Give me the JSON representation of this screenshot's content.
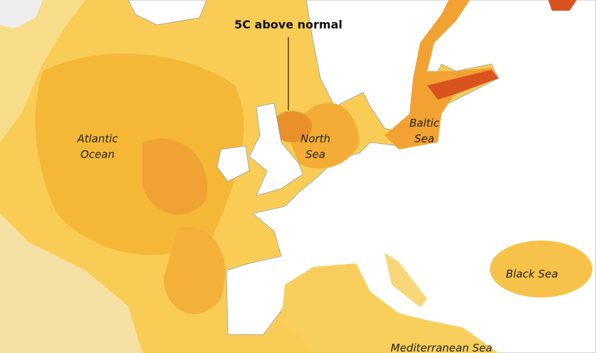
{
  "annotation": {
    "text": "5C above normal"
  },
  "labels": [
    {
      "lines": [
        "Atlantic",
        "Ocean"
      ]
    },
    {
      "lines": [
        "North",
        "Sea"
      ]
    },
    {
      "lines": [
        "Baltic",
        "Sea"
      ]
    },
    {
      "lines": [
        "Black Sea"
      ]
    },
    {
      "lines": [
        "Mediterranean Sea"
      ]
    }
  ]
}
